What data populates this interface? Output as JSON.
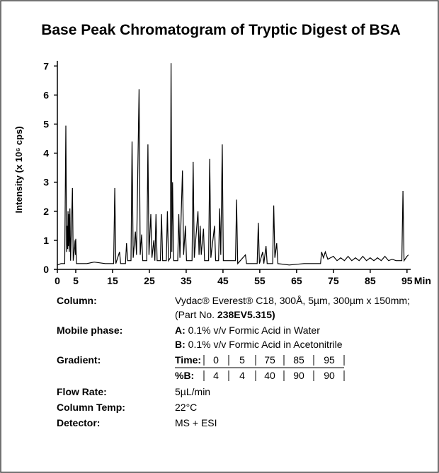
{
  "chart_data": {
    "type": "line",
    "title": "Base Peak Chromatogram of Tryptic Digest of BSA",
    "y_label": "Intensity (x 10⁶ cps)",
    "x_unit": "Min",
    "color": "#000000",
    "xlim": [
      0,
      96
    ],
    "ylim": [
      0,
      7.3
    ],
    "xticks": [
      0,
      5,
      15,
      25,
      35,
      45,
      55,
      65,
      75,
      85,
      95
    ],
    "yticks": [
      0,
      1,
      2,
      3,
      4,
      5,
      6,
      7
    ],
    "x": [
      0.0,
      1.0,
      2.0,
      2.3,
      2.4,
      2.5,
      2.7,
      2.8,
      2.9,
      3.0,
      3.1,
      3.25,
      3.4,
      3.6,
      4.1,
      4.3,
      4.7,
      4.8,
      4.9,
      5.0,
      5.2,
      8,
      10,
      13,
      15.3,
      15.6,
      15.9,
      16.9,
      17.2,
      18.5,
      18.8,
      19.1,
      20.0,
      20.3,
      20.6,
      21.2,
      21.5,
      22.2,
      22.5,
      22.9,
      23.2,
      24.3,
      24.6,
      24.9,
      25.4,
      25.7,
      26.2,
      26.5,
      26.8,
      27.1,
      28.0,
      28.3,
      28.6,
      29.6,
      29.9,
      30.2,
      30.7,
      30.9,
      31.1,
      31.3,
      31.6,
      32.7,
      33.0,
      33.3,
      34.0,
      34.3,
      34.8,
      35.1,
      36.6,
      36.9,
      37.2,
      38.2,
      38.5,
      38.8,
      39.1,
      39.7,
      40.0,
      41.1,
      41.4,
      41.7,
      42.7,
      43.0,
      43.8,
      44.1,
      44.4,
      44.8,
      45.1,
      48.4,
      48.7,
      49.0,
      51.1,
      51.4,
      54.3,
      54.6,
      54.9,
      55.8,
      56.1,
      56.7,
      57.0,
      58.5,
      58.8,
      59.1,
      59.6,
      59.9,
      63,
      67,
      71.5,
      71.8,
      72.3,
      72.8,
      73.5,
      75,
      76,
      77,
      78,
      79,
      80,
      81,
      82,
      83,
      84,
      85,
      86,
      87,
      88,
      89,
      90,
      91,
      92,
      93.6,
      93.9,
      94.2,
      95,
      95.4
    ],
    "values": [
      0.15,
      0.2,
      0.2,
      4.95,
      2.9,
      0.6,
      1.5,
      0.7,
      2.0,
      0.8,
      1.9,
      0.6,
      2.1,
      0.3,
      2.8,
      0.3,
      0.8,
      1.0,
      0.5,
      1.05,
      0.2,
      0.2,
      0.25,
      0.2,
      0.2,
      2.8,
      0.2,
      0.6,
      0.2,
      0.2,
      0.9,
      0.3,
      0.3,
      4.4,
      0.4,
      1.3,
      0.5,
      6.2,
      0.5,
      1.2,
      0.3,
      0.3,
      4.3,
      0.5,
      1.9,
      0.4,
      1.0,
      0.3,
      1.9,
      0.3,
      0.3,
      1.9,
      0.3,
      0.3,
      2.0,
      0.3,
      0.4,
      7.1,
      0.6,
      3.0,
      0.3,
      0.3,
      1.9,
      0.4,
      3.4,
      0.5,
      1.5,
      0.3,
      0.3,
      3.7,
      0.4,
      2.0,
      0.5,
      1.5,
      0.5,
      1.4,
      0.3,
      0.3,
      3.8,
      0.4,
      1.5,
      0.3,
      0.3,
      2.1,
      0.5,
      4.3,
      0.3,
      0.3,
      2.4,
      0.2,
      0.5,
      0.2,
      0.2,
      1.6,
      0.2,
      0.6,
      0.2,
      0.8,
      0.2,
      0.2,
      2.2,
      0.4,
      0.9,
      0.2,
      0.15,
      0.2,
      0.2,
      0.6,
      0.4,
      0.6,
      0.35,
      0.45,
      0.3,
      0.4,
      0.3,
      0.45,
      0.3,
      0.4,
      0.3,
      0.45,
      0.3,
      0.4,
      0.3,
      0.4,
      0.3,
      0.45,
      0.3,
      0.35,
      0.3,
      0.3,
      2.7,
      0.3,
      0.45,
      0.5
    ]
  },
  "specs": {
    "column": {
      "label": "Column:",
      "line1": "Vydac® Everest® C18, 300Å, 5µm, 300µm x 150mm;",
      "line2": "(Part No. ",
      "part_no": "238EV5.315)"
    },
    "mobile_phase": {
      "label": "Mobile phase:",
      "a_key": "A:",
      "a_text": " 0.1% v/v Formic Acid in Water",
      "b_key": "B:",
      "b_text": " 0.1% v/v Formic Acid in Acetonitrile"
    },
    "gradient": {
      "label": "Gradient:",
      "time_label": "Time:",
      "times": [
        0,
        5,
        75,
        85,
        95
      ],
      "b_label": "%B:",
      "percent_b": [
        4,
        4,
        40,
        90,
        90
      ]
    },
    "flow_rate": {
      "label": "Flow Rate:",
      "value": "5µL/min"
    },
    "column_temp": {
      "label": "Column Temp:",
      "value": "22°C"
    },
    "detector": {
      "label": "Detector:",
      "value": "MS + ESI"
    }
  }
}
